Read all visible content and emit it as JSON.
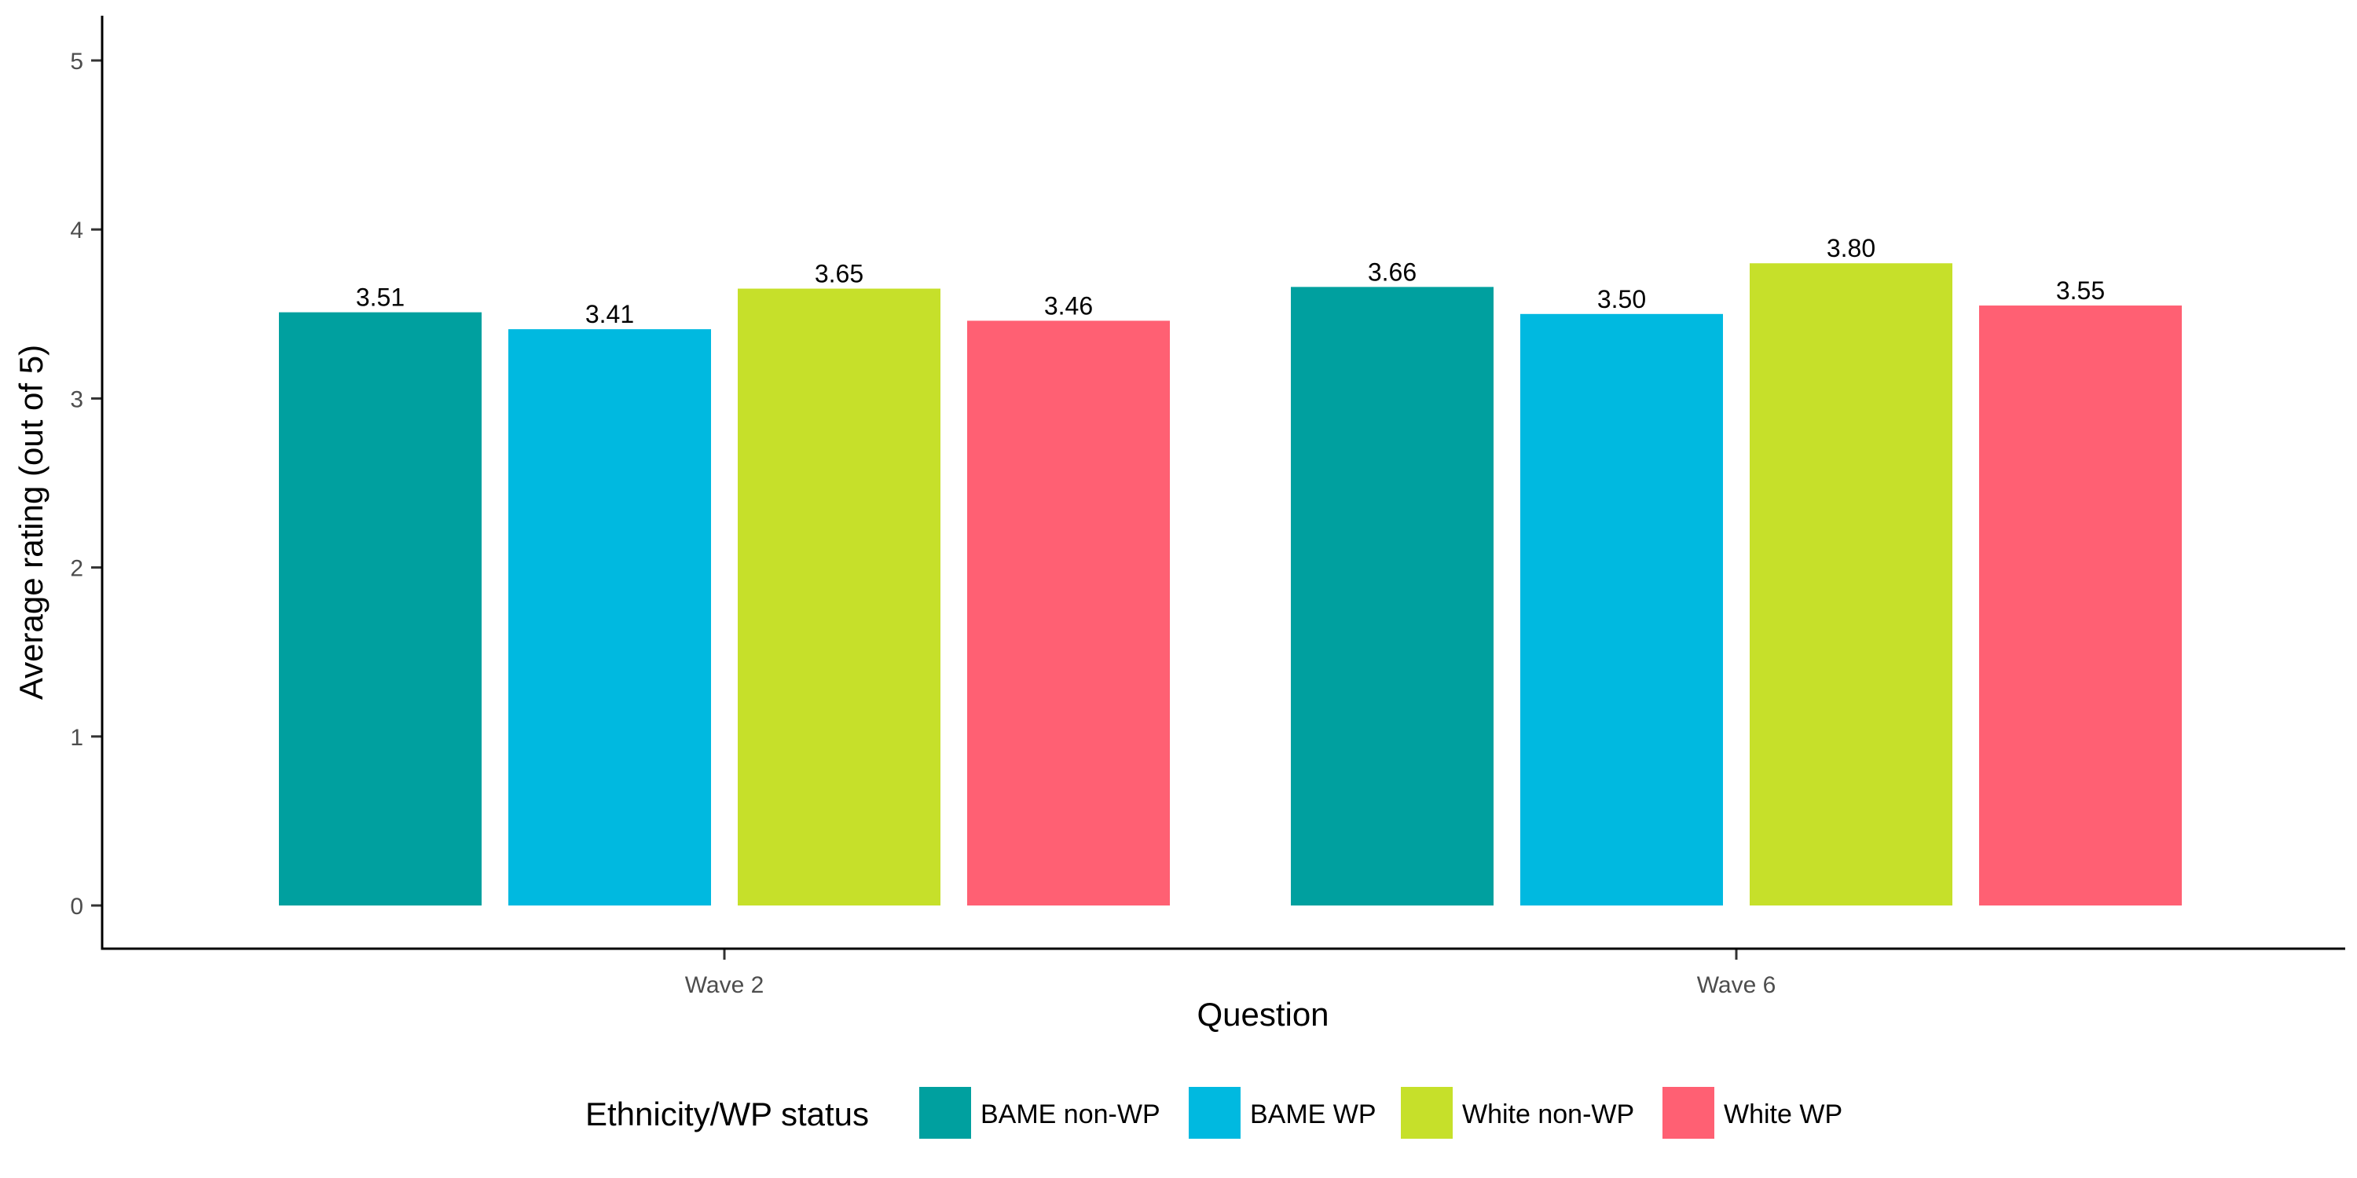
{
  "chart_data": {
    "type": "bar",
    "title": "",
    "xlabel": "Question",
    "ylabel": "Average rating (out of 5)",
    "ylim": [
      0,
      5
    ],
    "yticks": [
      0,
      1,
      2,
      3,
      4,
      5
    ],
    "categories": [
      "Wave 2",
      "Wave 6"
    ],
    "series": [
      {
        "name": "BAME non-WP",
        "color": "#00A09F",
        "values": [
          3.51,
          3.66
        ],
        "labels": [
          "3.51",
          "3.66"
        ]
      },
      {
        "name": "BAME WP",
        "color": "#00B9E0",
        "values": [
          3.41,
          3.5
        ],
        "labels": [
          "3.41",
          "3.50"
        ]
      },
      {
        "name": "White non-WP",
        "color": "#C6E02A",
        "values": [
          3.65,
          3.8
        ],
        "labels": [
          "3.65",
          "3.80"
        ]
      },
      {
        "name": "White WP",
        "color": "#FF6073",
        "values": [
          3.46,
          3.55
        ],
        "labels": [
          "3.46",
          "3.55"
        ]
      }
    ],
    "legend": {
      "title": "Ethnicity/WP status",
      "position": "bottom"
    },
    "grid": false
  }
}
